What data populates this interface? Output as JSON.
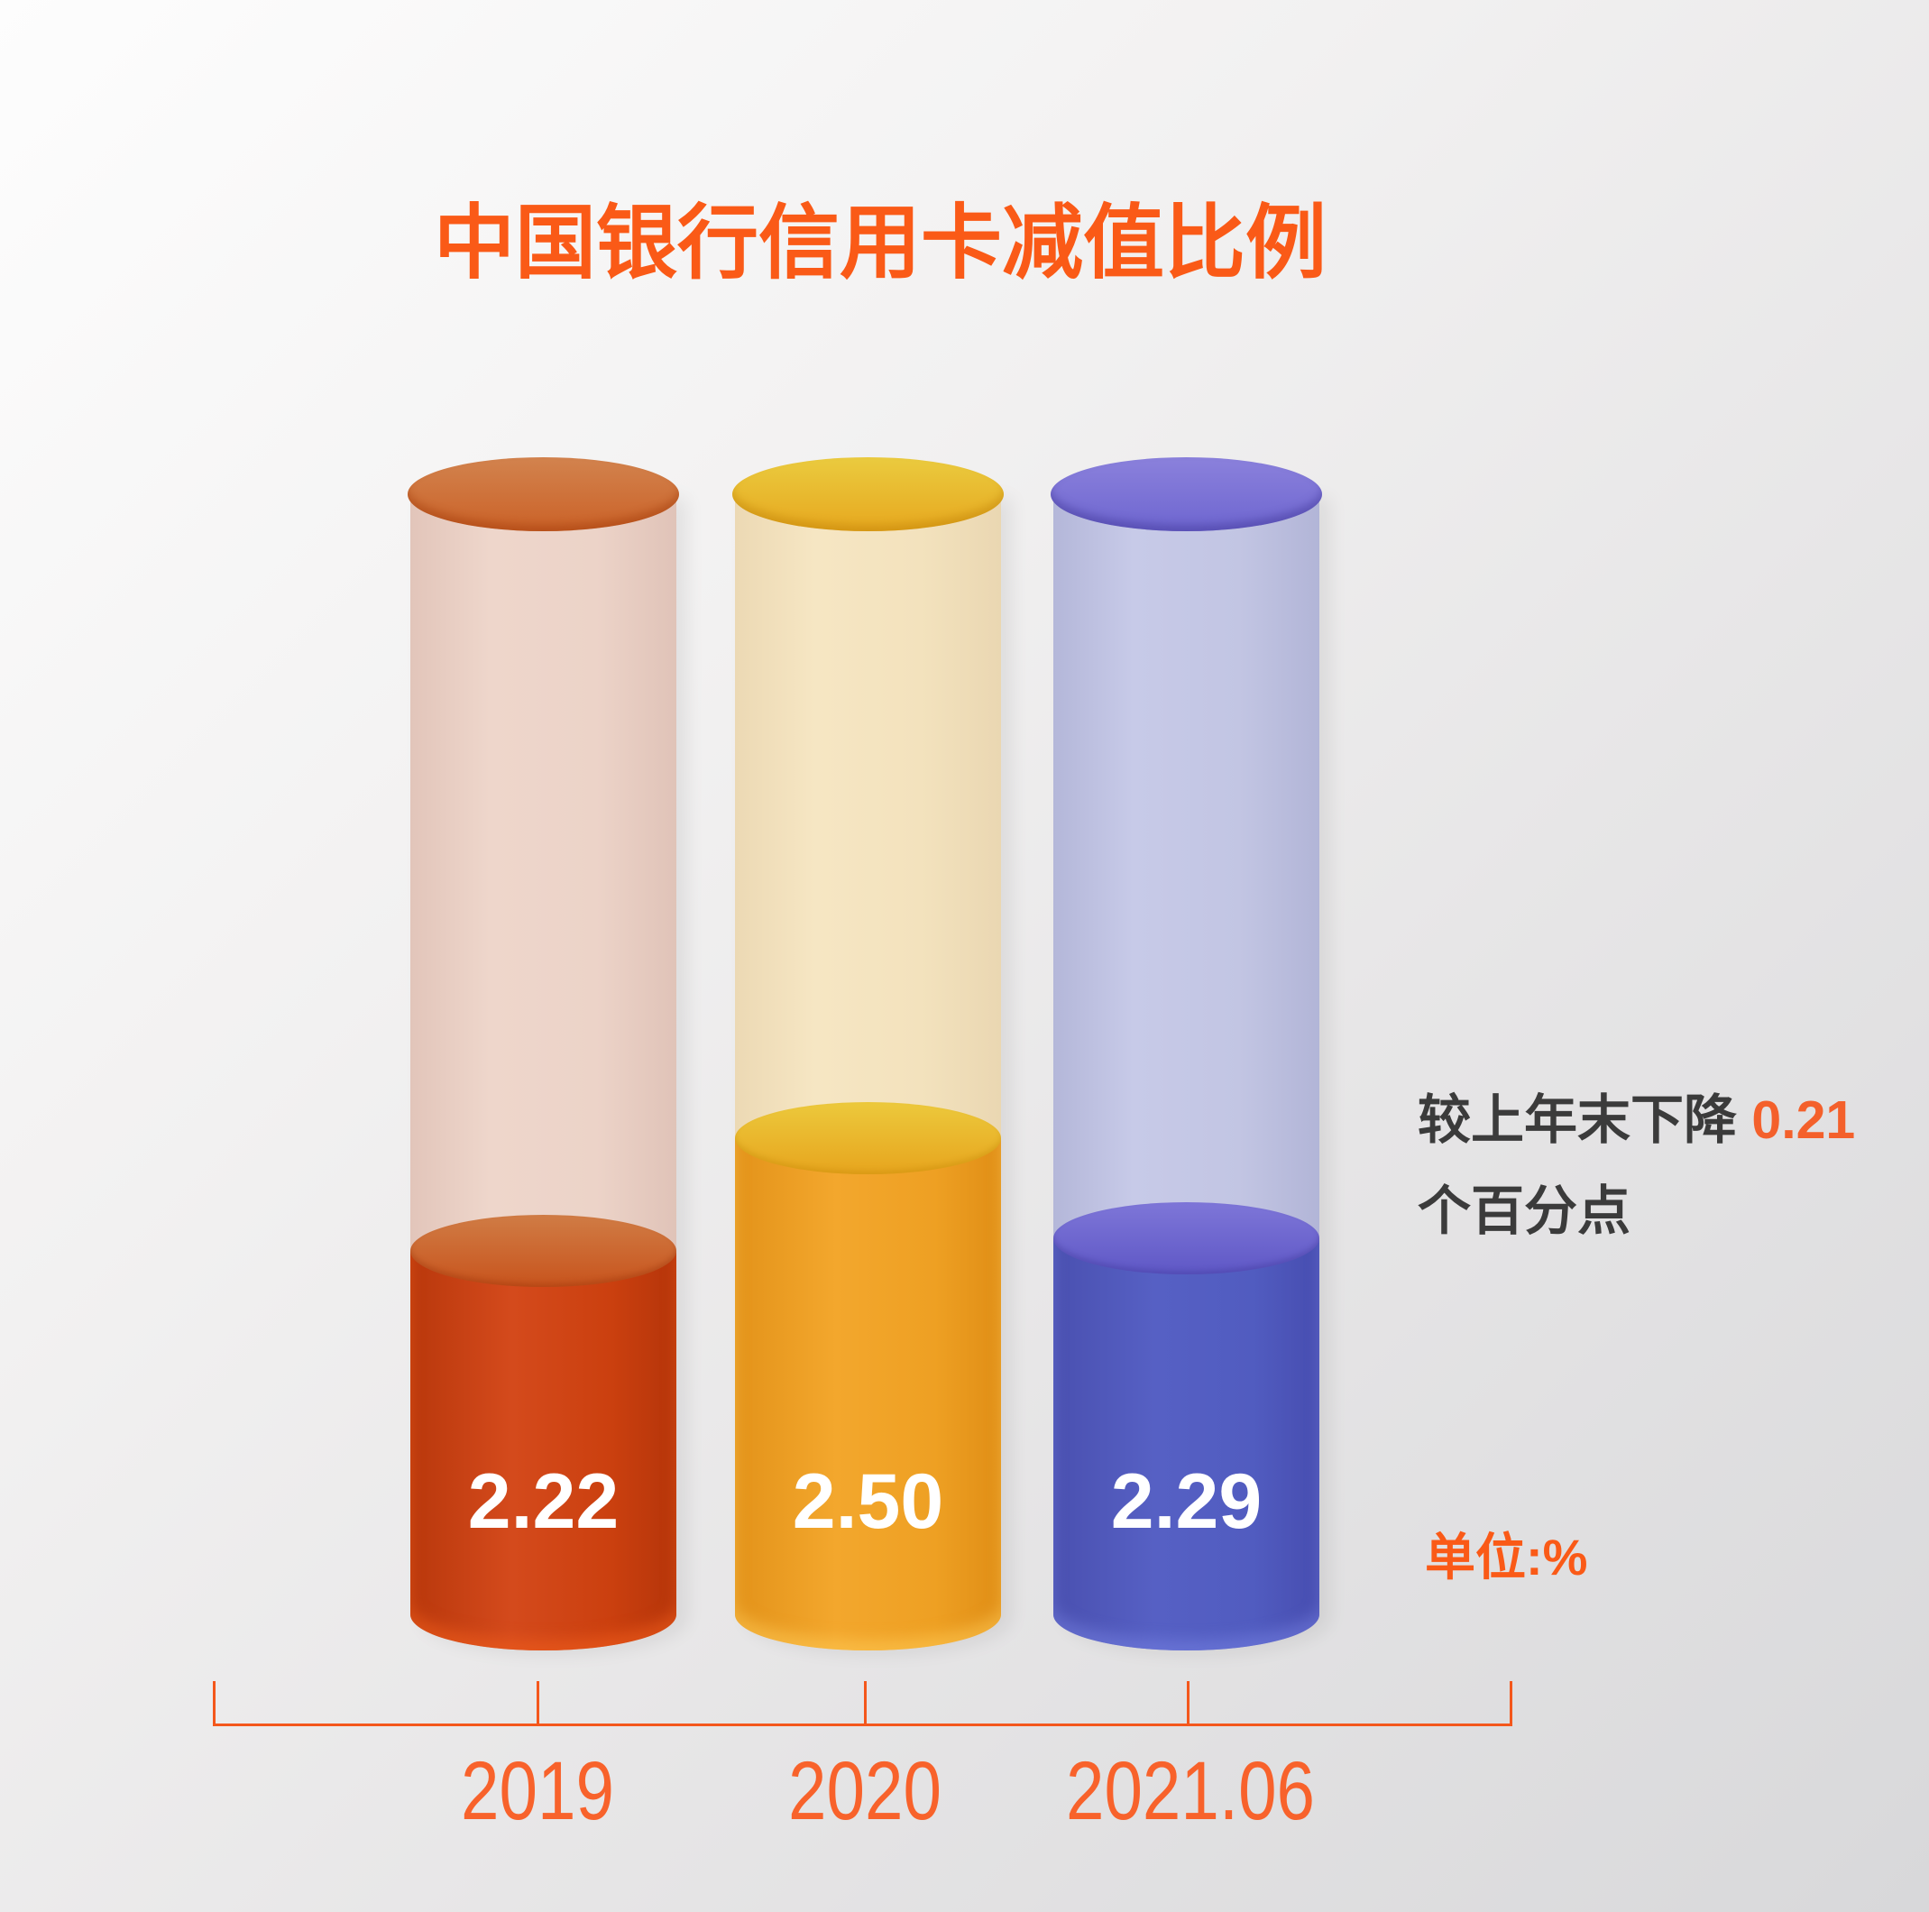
{
  "title": "中国银行信用卡减值比例",
  "annotation": {
    "prefix": "较上年末下降 ",
    "highlight": "0.21",
    "line2": "个百分点"
  },
  "unit_label": "单位:%",
  "colors": {
    "accent_orange": "#fa5a17",
    "axis_orange": "#f4571c",
    "annotation_text": "#3b3b3b",
    "annotation_highlight": "#f4602b",
    "bar_2019_solid": "#cb400f",
    "bar_2019_ghost": "#ecd3c8",
    "bar_2020_solid": "#f0a328",
    "bar_2020_ghost": "#f3e2bd",
    "bar_2021_solid": "#515cc0",
    "bar_2021_ghost": "#c2c5e3",
    "value_text": "#ffffff",
    "background_start": "#fdfdfd",
    "background_end": "#d8d8da"
  },
  "chart_data": {
    "type": "bar",
    "title": "中国银行信用卡减值比例",
    "categories": [
      "2019",
      "2020",
      "2021.06"
    ],
    "values": [
      2.22,
      2.5,
      2.29
    ],
    "unit": "%",
    "ylim": [
      0,
      6
    ],
    "legend": "none",
    "grid": false,
    "annotation": "较上年末下降 0.21 个百分点",
    "bars": [
      {
        "label": "2019",
        "value": 2.22,
        "value_label": "2.22"
      },
      {
        "label": "2020",
        "value": 2.5,
        "value_label": "2.50"
      },
      {
        "label": "2021.06",
        "value": 2.29,
        "value_label": "2.29"
      }
    ]
  }
}
